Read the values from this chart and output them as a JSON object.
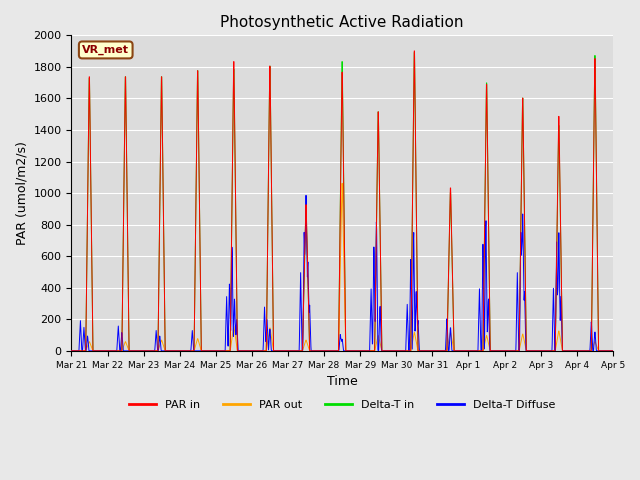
{
  "title": "Photosynthetic Active Radiation",
  "xlabel": "Time",
  "ylabel": "PAR (umol/m2/s)",
  "ylim": [
    0,
    2000
  ],
  "background_color": "#e8e8e8",
  "plot_bg_color": "#dcdcdc",
  "label_box_text": "VR_met",
  "label_box_facecolor": "#ffffcc",
  "label_box_edgecolor": "#8b4513",
  "label_box_textcolor": "#8b0000",
  "grid_color": "white",
  "series_colors": {
    "par_in": "#ff0000",
    "par_out": "#ffa500",
    "delta_t_in": "#00dd00",
    "delta_t_diffuse": "#0000ff"
  },
  "legend_labels": [
    "PAR in",
    "PAR out",
    "Delta-T in",
    "Delta-T Diffuse"
  ],
  "tick_labels": [
    "Mar 21",
    "Mar 22",
    "Mar 23",
    "Mar 24",
    "Mar 25",
    "Mar 26",
    "Mar 27",
    "Mar 28",
    "Mar 29",
    "Mar 30",
    "Mar 31",
    "Apr 1",
    "Apr 2",
    "Apr 3",
    "Apr 4",
    "Apr 5"
  ],
  "figsize": [
    6.4,
    4.8
  ],
  "dpi": 100
}
